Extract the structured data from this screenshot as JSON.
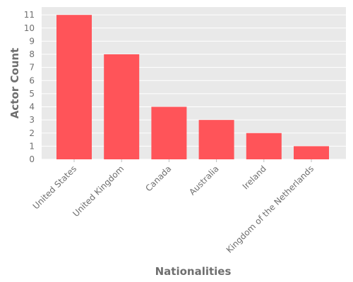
{
  "chart_data": {
    "type": "bar",
    "title": "",
    "xlabel": "Nationalities",
    "ylabel": "Actor Count",
    "categories": [
      "United States",
      "United Kingdom",
      "Canada",
      "Australia",
      "Ireland",
      "Kingdom of the Netherlands"
    ],
    "values": [
      11,
      8,
      4,
      3,
      2,
      1
    ],
    "ylim": [
      0,
      11.6
    ],
    "yticks": [
      0,
      1,
      2,
      3,
      4,
      5,
      6,
      7,
      8,
      9,
      10,
      11
    ],
    "grid": true,
    "colors": {
      "bar": "#ff5459",
      "panel": "#e9e9e9",
      "grid": "#ffffff",
      "text": "#6f6f6f"
    }
  }
}
